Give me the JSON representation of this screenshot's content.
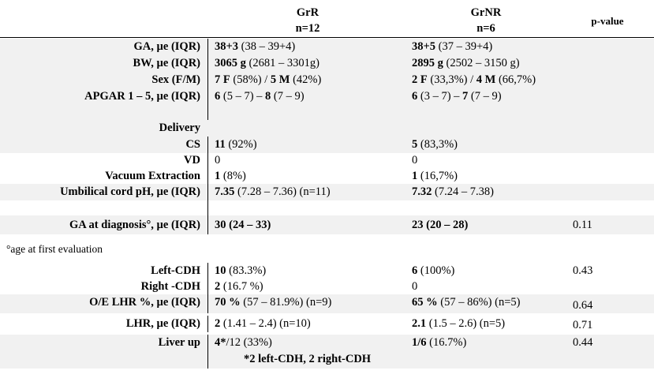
{
  "header": {
    "col1_line1": "GrR",
    "col1_line2": "n=12",
    "col2_line1": "GrNR",
    "col2_line2": "n=6",
    "col3": "p-value"
  },
  "rows": {
    "ga": {
      "label": "GA, µe (IQR)",
      "g1b": "38+3",
      "g1": " (38 – 39+4)",
      "g2b": "38+5",
      "g2": " (37 – 39+4)"
    },
    "bw": {
      "label": "BW, µe (IQR)",
      "g1b": "3065 g",
      "g1": " (2681 – 3301g)",
      "g2b": "2895 g",
      "g2": " (2502 – 3150 g)"
    },
    "sex": {
      "label": "Sex (F/M)",
      "g1b": "7 F",
      "g1": " (58%) / ",
      "g1b2": "5 M",
      "g1c": " (42%)",
      "g2b": "2 F",
      "g2": " (33,3%) / ",
      "g2b2": "4 M",
      "g2c": " (66,7%)"
    },
    "apgar": {
      "label": "APGAR 1 – 5, µe (IQR)",
      "g1b": "6",
      "g1": " (5 – 7) – ",
      "g1b2": "8",
      "g1c": " (7 – 9)",
      "g2b": "6",
      "g2": " (3 – 7) – ",
      "g2b2": "7",
      "g2c": " (7 – 9)"
    },
    "delivery": {
      "label": "Delivery"
    },
    "cs": {
      "label": "CS",
      "g1b": "11",
      "g1": " (92%)",
      "g2b": "5",
      "g2": " (83,3%)"
    },
    "vd": {
      "label": "VD",
      "g1": "0",
      "g2": "0"
    },
    "vacuum": {
      "label": "Vacuum Extraction",
      "g1b": "1",
      "g1": " (8%)",
      "g2b": "1",
      "g2": " (16,7%)"
    },
    "ph": {
      "label": "Umbilical cord pH, µe (IQR)",
      "g1b": "7.35",
      "g1": " (7.28 – 7.36) (n=11)",
      "g2b": "7.32",
      "g2": " (7.24 – 7.38)"
    },
    "gadx": {
      "label": "GA at diagnosis°, µe (IQR)",
      "g1b": "30 (24 – 33)",
      "g2b": "23 (20 – 28)",
      "p": "0.11"
    },
    "note": "°age at first evaluation",
    "lcdh": {
      "label": "Left-CDH",
      "g1b": "10",
      "g1": " (83.3%)",
      "g2b": "6",
      "g2": " (100%)",
      "p": "0.43"
    },
    "rcdh": {
      "label": "Right -CDH",
      "g1b": "2",
      "g1": " (16.7 %)",
      "g2": "0"
    },
    "oelhr": {
      "label": "O/E LHR %, µe (IQR)",
      "g1b": "70 %",
      "g1": " (57 – 81.9%) (n=9)",
      "g2b": "65 %",
      "g2": " (57 – 86%) (n=5)",
      "p": "0.64"
    },
    "lhr": {
      "label": "LHR, µe (IQR)",
      "g1b": "2",
      "g1": " (1.41 – 2.4) (n=10)",
      "g2b": "2.1",
      "g2": " (1.5 – 2.6) (n=5)",
      "p": "0.71"
    },
    "liver": {
      "label": "Liver up",
      "g1b": "4*",
      "g1": "/12 (33%)",
      "g2b": "1/6",
      "g2": " (16.7%)",
      "p": "0.44"
    },
    "footnote": "*2 left-CDH, 2 right-CDH"
  }
}
